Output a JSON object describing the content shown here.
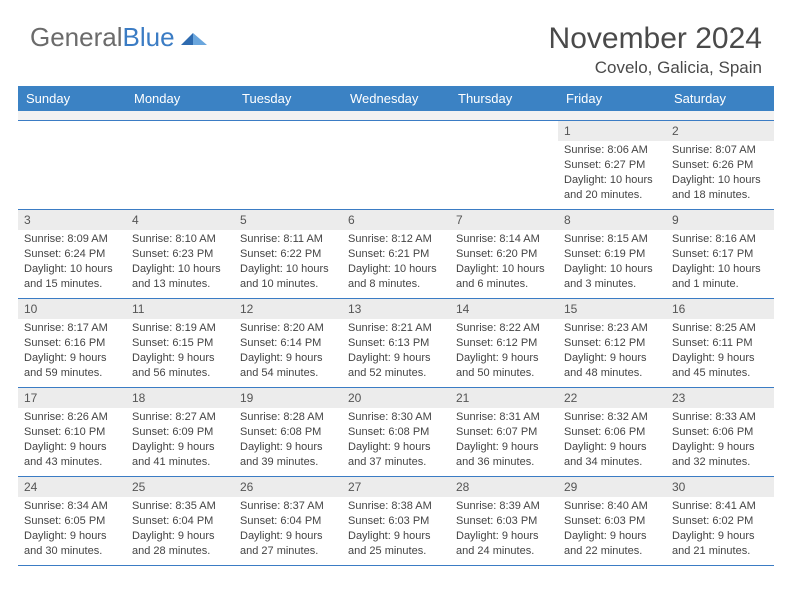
{
  "logo": {
    "part1": "General",
    "part2": "Blue"
  },
  "title": "November 2024",
  "location": "Covelo, Galicia, Spain",
  "colors": {
    "header_bg": "#3b82c4",
    "rule": "#3b7cc4",
    "daynum_bg": "#ececec",
    "text": "#444444",
    "title_text": "#4a4a4a"
  },
  "dayHeaders": [
    "Sunday",
    "Monday",
    "Tuesday",
    "Wednesday",
    "Thursday",
    "Friday",
    "Saturday"
  ],
  "weeks": [
    [
      {
        "empty": true
      },
      {
        "empty": true
      },
      {
        "empty": true
      },
      {
        "empty": true
      },
      {
        "empty": true
      },
      {
        "n": "1",
        "sunrise": "8:06 AM",
        "sunset": "6:27 PM",
        "day_h": "10",
        "day_m": "20"
      },
      {
        "n": "2",
        "sunrise": "8:07 AM",
        "sunset": "6:26 PM",
        "day_h": "10",
        "day_m": "18"
      }
    ],
    [
      {
        "n": "3",
        "sunrise": "8:09 AM",
        "sunset": "6:24 PM",
        "day_h": "10",
        "day_m": "15"
      },
      {
        "n": "4",
        "sunrise": "8:10 AM",
        "sunset": "6:23 PM",
        "day_h": "10",
        "day_m": "13"
      },
      {
        "n": "5",
        "sunrise": "8:11 AM",
        "sunset": "6:22 PM",
        "day_h": "10",
        "day_m": "10"
      },
      {
        "n": "6",
        "sunrise": "8:12 AM",
        "sunset": "6:21 PM",
        "day_h": "10",
        "day_m": "8"
      },
      {
        "n": "7",
        "sunrise": "8:14 AM",
        "sunset": "6:20 PM",
        "day_h": "10",
        "day_m": "6"
      },
      {
        "n": "8",
        "sunrise": "8:15 AM",
        "sunset": "6:19 PM",
        "day_h": "10",
        "day_m": "3"
      },
      {
        "n": "9",
        "sunrise": "8:16 AM",
        "sunset": "6:17 PM",
        "day_h": "10",
        "day_m": "1",
        "m_singular": true
      }
    ],
    [
      {
        "n": "10",
        "sunrise": "8:17 AM",
        "sunset": "6:16 PM",
        "day_h": "9",
        "day_m": "59"
      },
      {
        "n": "11",
        "sunrise": "8:19 AM",
        "sunset": "6:15 PM",
        "day_h": "9",
        "day_m": "56"
      },
      {
        "n": "12",
        "sunrise": "8:20 AM",
        "sunset": "6:14 PM",
        "day_h": "9",
        "day_m": "54"
      },
      {
        "n": "13",
        "sunrise": "8:21 AM",
        "sunset": "6:13 PM",
        "day_h": "9",
        "day_m": "52"
      },
      {
        "n": "14",
        "sunrise": "8:22 AM",
        "sunset": "6:12 PM",
        "day_h": "9",
        "day_m": "50"
      },
      {
        "n": "15",
        "sunrise": "8:23 AM",
        "sunset": "6:12 PM",
        "day_h": "9",
        "day_m": "48"
      },
      {
        "n": "16",
        "sunrise": "8:25 AM",
        "sunset": "6:11 PM",
        "day_h": "9",
        "day_m": "45"
      }
    ],
    [
      {
        "n": "17",
        "sunrise": "8:26 AM",
        "sunset": "6:10 PM",
        "day_h": "9",
        "day_m": "43"
      },
      {
        "n": "18",
        "sunrise": "8:27 AM",
        "sunset": "6:09 PM",
        "day_h": "9",
        "day_m": "41"
      },
      {
        "n": "19",
        "sunrise": "8:28 AM",
        "sunset": "6:08 PM",
        "day_h": "9",
        "day_m": "39"
      },
      {
        "n": "20",
        "sunrise": "8:30 AM",
        "sunset": "6:08 PM",
        "day_h": "9",
        "day_m": "37"
      },
      {
        "n": "21",
        "sunrise": "8:31 AM",
        "sunset": "6:07 PM",
        "day_h": "9",
        "day_m": "36"
      },
      {
        "n": "22",
        "sunrise": "8:32 AM",
        "sunset": "6:06 PM",
        "day_h": "9",
        "day_m": "34"
      },
      {
        "n": "23",
        "sunrise": "8:33 AM",
        "sunset": "6:06 PM",
        "day_h": "9",
        "day_m": "32"
      }
    ],
    [
      {
        "n": "24",
        "sunrise": "8:34 AM",
        "sunset": "6:05 PM",
        "day_h": "9",
        "day_m": "30"
      },
      {
        "n": "25",
        "sunrise": "8:35 AM",
        "sunset": "6:04 PM",
        "day_h": "9",
        "day_m": "28"
      },
      {
        "n": "26",
        "sunrise": "8:37 AM",
        "sunset": "6:04 PM",
        "day_h": "9",
        "day_m": "27"
      },
      {
        "n": "27",
        "sunrise": "8:38 AM",
        "sunset": "6:03 PM",
        "day_h": "9",
        "day_m": "25"
      },
      {
        "n": "28",
        "sunrise": "8:39 AM",
        "sunset": "6:03 PM",
        "day_h": "9",
        "day_m": "24"
      },
      {
        "n": "29",
        "sunrise": "8:40 AM",
        "sunset": "6:03 PM",
        "day_h": "9",
        "day_m": "22"
      },
      {
        "n": "30",
        "sunrise": "8:41 AM",
        "sunset": "6:02 PM",
        "day_h": "9",
        "day_m": "21"
      }
    ]
  ],
  "labels": {
    "sunrise": "Sunrise:",
    "sunset": "Sunset:",
    "daylight": "Daylight:",
    "hours": "hours",
    "and": "and",
    "minutes": "minutes.",
    "minute": "minute."
  }
}
